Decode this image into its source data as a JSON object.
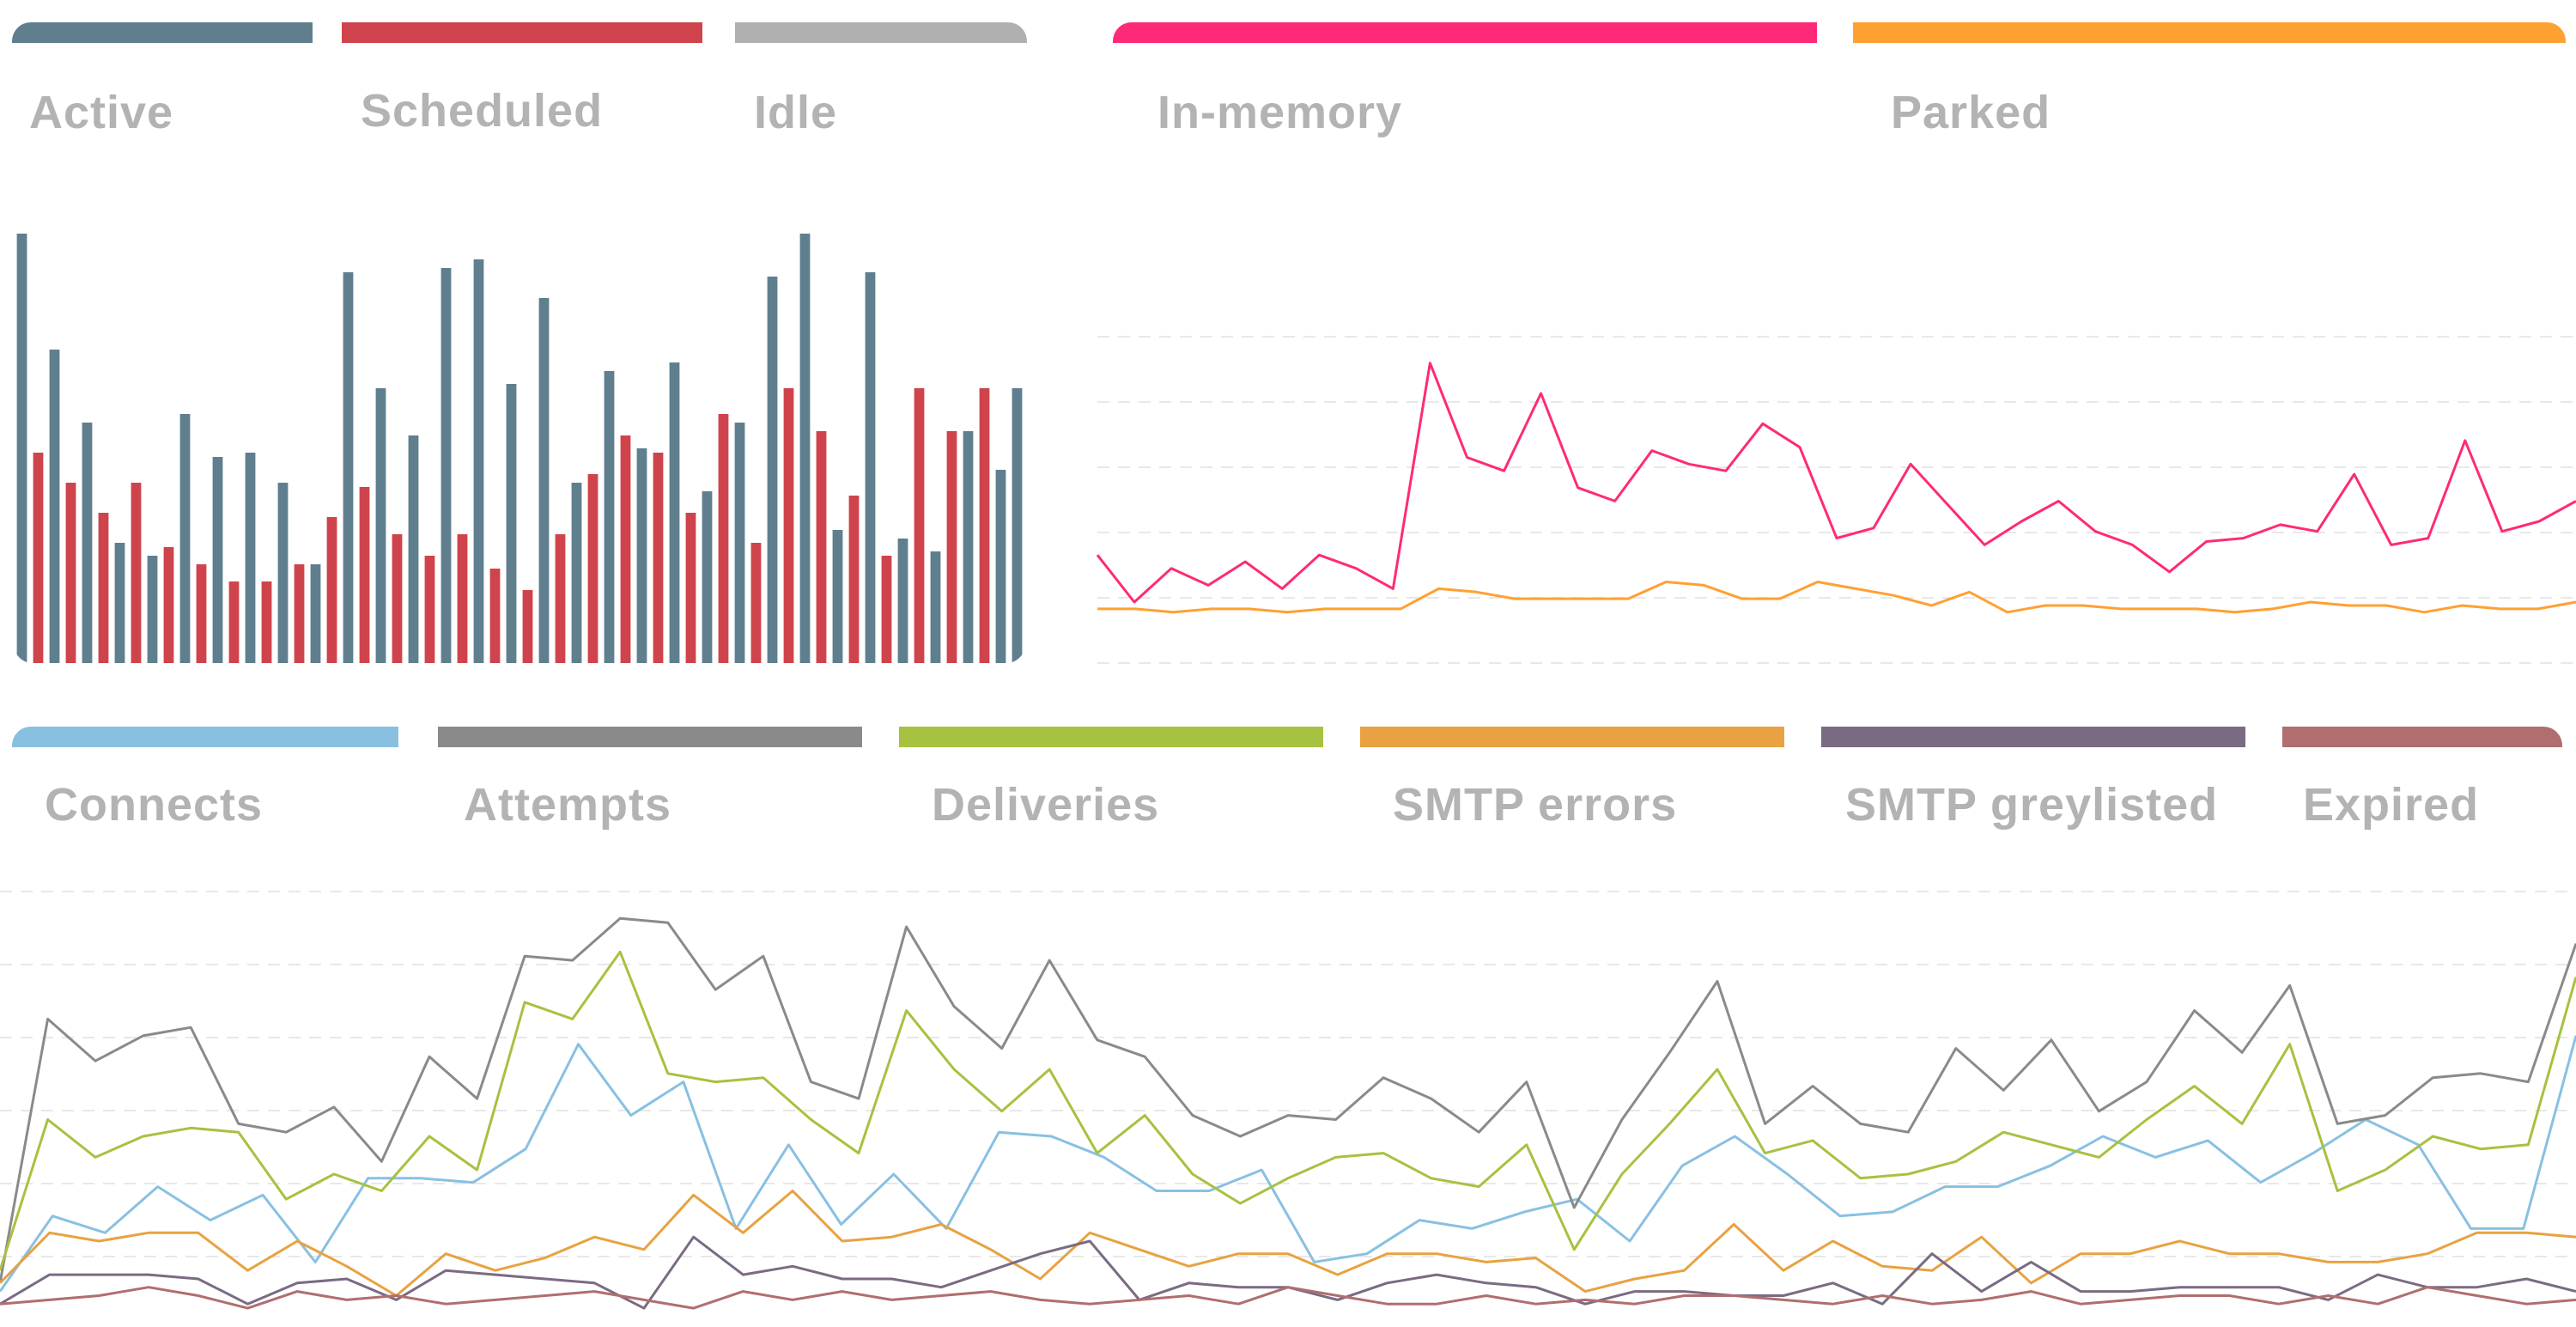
{
  "colors": {
    "active": "#5f7f8f",
    "scheduled": "#cf444c",
    "idle": "#b0b0b0",
    "in_memory": "#ff2a77",
    "parked": "#ffa033",
    "connects": "#89c0e2",
    "attempts": "#8a8a8a",
    "deliveries": "#a6c240",
    "smtp_errors": "#e8a241",
    "smtp_greylisted": "#7a6b83",
    "expired": "#b06e6e",
    "grid": "#e8e8e8",
    "label": "#b3b3b3"
  },
  "chart_data": [
    {
      "type": "bar",
      "legend_position": "top",
      "series": [
        {
          "name": "Active",
          "color_key": "active",
          "values": [
            100,
            91,
            73,
            66,
            56,
            32,
            28,
            20,
            25,
            51,
            58,
            51,
            48,
            26,
            49,
            39,
            42,
            22,
            23,
            100,
            91,
            68,
            64,
            55,
            53,
            36,
            92,
            58,
            94,
            100,
            65,
            76,
            85,
            18,
            42,
            22,
            68,
            66,
            50,
            55,
            70,
            38,
            40,
            88,
            56,
            100,
            90,
            60,
            100,
            85,
            31,
            56,
            91,
            64,
            29,
            52,
            26,
            45,
            54,
            26,
            45,
            64
          ]
        },
        {
          "name": "Scheduled",
          "color_key": "scheduled",
          "values": [
            49,
            42,
            35,
            42,
            27,
            23,
            19,
            19,
            23,
            34,
            41,
            30,
            25,
            30,
            22,
            17,
            30,
            44,
            53,
            49,
            35,
            58,
            28,
            64,
            54,
            39,
            25,
            64,
            54,
            64
          ]
        },
        {
          "name": "Idle",
          "color_key": "idle",
          "values": []
        }
      ]
    },
    {
      "type": "line",
      "legend_position": "top",
      "ylim": [
        0,
        100
      ],
      "series": [
        {
          "name": "In-memory",
          "color_key": "in_memory",
          "values": [
            27,
            13,
            23,
            18,
            25,
            17,
            27,
            23,
            17,
            84,
            56,
            52,
            75,
            47,
            43,
            58,
            54,
            52,
            66,
            59,
            32,
            35,
            54,
            42,
            30,
            37,
            43,
            34,
            30,
            22,
            31,
            32,
            36,
            34,
            51,
            30,
            32,
            61,
            34,
            37,
            43
          ]
        },
        {
          "name": "Parked",
          "color_key": "parked",
          "values": [
            11,
            11,
            10,
            11,
            11,
            10,
            11,
            11,
            11,
            17,
            16,
            14,
            14,
            14,
            14,
            19,
            18,
            14,
            14,
            19,
            17,
            15,
            12,
            16,
            10,
            12,
            12,
            11,
            11,
            11,
            10,
            11,
            13,
            12,
            12,
            10,
            12,
            11,
            11,
            13
          ]
        }
      ]
    },
    {
      "type": "line",
      "legend_position": "top",
      "ylim": [
        0,
        100
      ],
      "series": [
        {
          "name": "Connects",
          "color_key": "connects",
          "values": [
            5,
            23,
            19,
            30,
            22,
            28,
            12,
            32,
            32,
            31,
            39,
            64,
            47,
            55,
            20,
            40,
            21,
            33,
            20,
            43,
            42,
            37,
            29,
            29,
            34,
            12,
            14,
            22,
            20,
            24,
            27,
            17,
            35,
            42,
            33,
            23,
            24,
            30,
            30,
            35,
            42,
            37,
            41,
            31,
            38,
            46,
            40,
            20,
            20,
            66
          ]
        },
        {
          "name": "Attempts",
          "color_key": "attempts",
          "values": [
            7,
            70,
            60,
            66,
            68,
            45,
            43,
            49,
            36,
            61,
            51,
            85,
            84,
            94,
            93,
            77,
            85,
            55,
            51,
            92,
            73,
            63,
            84,
            65,
            61,
            47,
            42,
            47,
            46,
            56,
            51,
            43,
            55,
            25,
            46,
            62,
            79,
            45,
            54,
            45,
            43,
            63,
            53,
            65,
            48,
            55,
            72,
            62,
            78,
            45,
            47,
            56,
            57,
            55,
            88
          ]
        },
        {
          "name": "Deliveries",
          "color_key": "deliveries",
          "values": [
            10,
            46,
            37,
            42,
            44,
            43,
            27,
            33,
            29,
            42,
            34,
            74,
            70,
            86,
            57,
            55,
            56,
            46,
            38,
            72,
            58,
            48,
            58,
            38,
            47,
            33,
            26,
            32,
            37,
            38,
            32,
            30,
            40,
            15,
            33,
            45,
            58,
            38,
            41,
            32,
            33,
            36,
            43,
            40,
            37,
            46,
            54,
            45,
            64,
            29,
            34,
            42,
            39,
            40,
            80
          ]
        },
        {
          "name": "SMTP errors",
          "color_key": "smtp_errors",
          "values": [
            7,
            19,
            17,
            19,
            19,
            10,
            17,
            11,
            4,
            14,
            10,
            13,
            18,
            15,
            28,
            19,
            29,
            17,
            18,
            21,
            15,
            8,
            19,
            15,
            11,
            14,
            14,
            9,
            14,
            14,
            12,
            13,
            5,
            8,
            10,
            21,
            10,
            17,
            11,
            10,
            18,
            7,
            14,
            14,
            17,
            14,
            14,
            12,
            12,
            14,
            19,
            19,
            18
          ]
        },
        {
          "name": "SMTP greylisted",
          "color_key": "smtp_greylisted",
          "values": [
            2,
            9,
            9,
            9,
            8,
            2,
            7,
            8,
            3,
            10,
            9,
            8,
            7,
            1,
            18,
            9,
            11,
            8,
            8,
            6,
            10,
            14,
            17,
            3,
            7,
            6,
            6,
            3,
            7,
            9,
            7,
            6,
            2,
            5,
            5,
            4,
            4,
            7,
            2,
            14,
            5,
            12,
            5,
            5,
            6,
            6,
            6,
            3,
            9,
            6,
            6,
            8,
            5
          ]
        },
        {
          "name": "Expired",
          "color_key": "expired",
          "values": [
            2,
            3,
            4,
            6,
            4,
            1,
            5,
            3,
            4,
            2,
            3,
            4,
            5,
            3,
            1,
            5,
            3,
            5,
            3,
            4,
            5,
            3,
            2,
            3,
            4,
            2,
            6,
            4,
            2,
            2,
            4,
            2,
            3,
            2,
            4,
            4,
            3,
            2,
            4,
            2,
            3,
            5,
            2,
            3,
            4,
            4,
            2,
            4,
            2,
            6,
            4,
            2,
            3
          ]
        }
      ]
    }
  ]
}
